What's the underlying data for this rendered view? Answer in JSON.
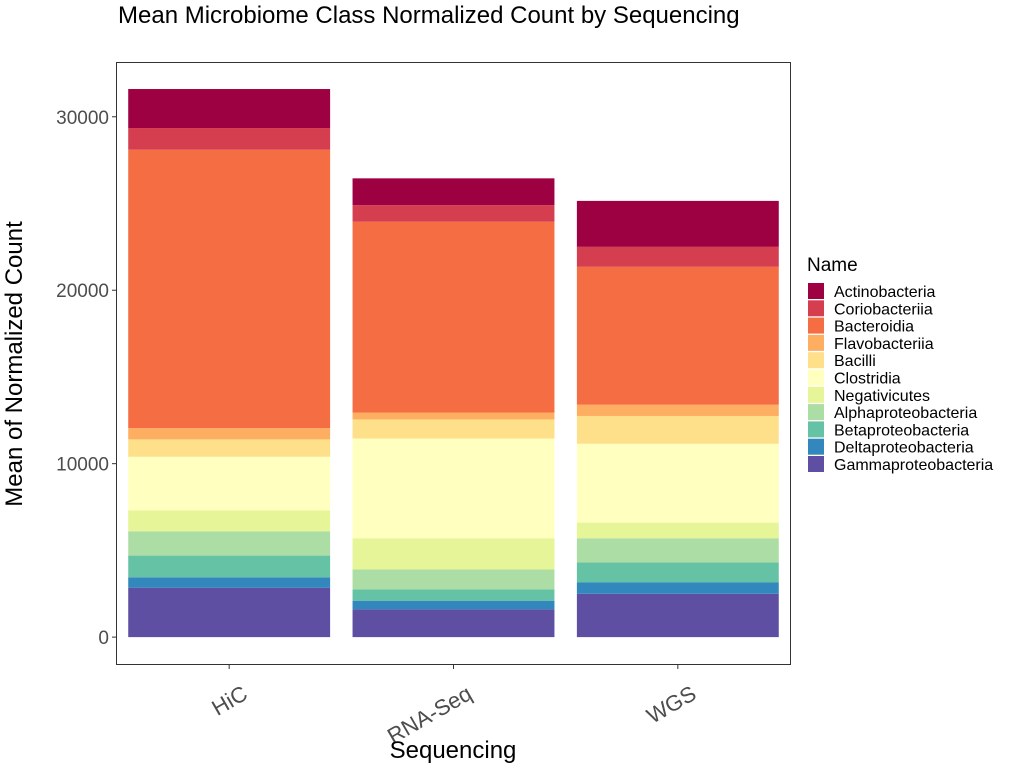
{
  "chart_data": {
    "type": "bar",
    "stacked": true,
    "title": "Mean Microbiome Class Normalized Count by Sequencing",
    "xlabel": "Sequencing",
    "ylabel": "Mean of Normalized Count",
    "categories": [
      "HiC",
      "RNA-Seq",
      "WGS"
    ],
    "ylim": [
      -1550,
      33100
    ],
    "yticks": [
      0,
      10000,
      20000,
      30000
    ],
    "grid": false,
    "legend": {
      "title": "Name",
      "position": "right"
    },
    "series": [
      {
        "name": "Gammaproteobacteria",
        "color": "#5E4FA2",
        "values": [
          2850,
          1600,
          2500
        ]
      },
      {
        "name": "Deltaproteobacteria",
        "color": "#3288BD",
        "values": [
          600,
          500,
          650
        ]
      },
      {
        "name": "Betaproteobacteria",
        "color": "#66C2A5",
        "values": [
          1250,
          650,
          1150
        ]
      },
      {
        "name": "Alphaproteobacteria",
        "color": "#ABDDA4",
        "values": [
          1400,
          1150,
          1400
        ]
      },
      {
        "name": "Negativicutes",
        "color": "#E6F598",
        "values": [
          1200,
          1800,
          900
        ]
      },
      {
        "name": "Clostridia",
        "color": "#FFFFBF",
        "values": [
          3100,
          5750,
          4550
        ]
      },
      {
        "name": "Bacilli",
        "color": "#FEE08B",
        "values": [
          1000,
          1100,
          1600
        ]
      },
      {
        "name": "Flavobacteriia",
        "color": "#FDAE61",
        "values": [
          650,
          400,
          650
        ]
      },
      {
        "name": "Bacteroidia",
        "color": "#F46D43",
        "values": [
          16050,
          11000,
          7950
        ]
      },
      {
        "name": "Coriobacteriia",
        "color": "#D53E4F",
        "values": [
          1250,
          950,
          1150
        ]
      },
      {
        "name": "Actinobacteria",
        "color": "#9E0142",
        "values": [
          2250,
          1550,
          2650
        ]
      }
    ]
  }
}
